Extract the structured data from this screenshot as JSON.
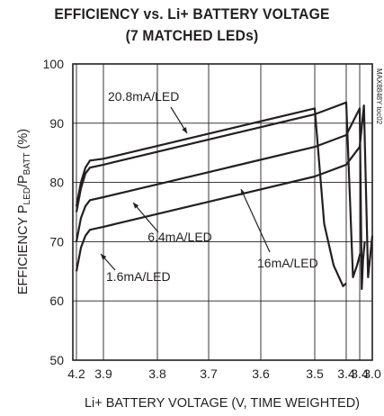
{
  "chart_data": {
    "type": "line",
    "title": "EFFICIENCY vs. Li+ BATTERY VOLTAGE",
    "subtitle": "(7 MATCHED LEDs)",
    "xlabel": "Li+ BATTERY VOLTAGE (V, TIME WEIGHTED)",
    "ylabel": "EFFICIENCY PLED/PBATT (%)",
    "ylabel_parts": {
      "prefix": "EFFICIENCY P",
      "sub1": "LED",
      "mid": "/P",
      "sub2": "BATT",
      "suffix": " (%)"
    },
    "watermark": "MAX8848Y toc02",
    "x_axis": {
      "reversed": true,
      "xlim": [
        4.2,
        3.0
      ],
      "ticks": [
        {
          "value": 4.2,
          "label": "4.2"
        },
        {
          "value": 3.9,
          "label": "3.9"
        },
        {
          "value": 3.8,
          "label": "3.8"
        },
        {
          "value": 3.7,
          "label": "3.7"
        },
        {
          "value": 3.6,
          "label": "3.6"
        },
        {
          "value": 3.5,
          "label": "3.5"
        },
        {
          "value": 3.4,
          "label": "3.4"
        },
        {
          "value": 3.3,
          "label": "3.3"
        },
        {
          "value": 3.0,
          "label": "3.0"
        }
      ],
      "tick_label_display": [
        "4.2",
        "3.9",
        "3.8",
        "3.7",
        "3.6",
        "3.5",
        "3.4",
        "3.4",
        "3.0"
      ]
    },
    "ylim": [
      50,
      100
    ],
    "yticks": [
      50,
      60,
      70,
      80,
      90,
      100
    ],
    "grid": true,
    "series": [
      {
        "name": "20.8mA/LED",
        "x": [
          4.2,
          4.15,
          4.1,
          4.05,
          3.9,
          3.5,
          3.47,
          3.44,
          3.41,
          3.4
        ],
        "y": [
          76,
          80,
          82.5,
          83.7,
          84,
          92.5,
          73,
          66,
          62.5,
          63
        ]
      },
      {
        "name": "16mA/LED",
        "x": [
          4.2,
          4.15,
          4.1,
          4.05,
          3.9,
          3.5,
          3.45,
          3.4,
          3.35,
          3.32,
          3.29
        ],
        "y": [
          75,
          79,
          81.5,
          82.5,
          83,
          91.5,
          92.5,
          93.5,
          64,
          66,
          68
        ]
      },
      {
        "name": "6.4mA/LED",
        "x": [
          4.2,
          4.15,
          4.1,
          4.05,
          3.9,
          3.5,
          3.4,
          3.3,
          3.25,
          3.22,
          3.18
        ],
        "y": [
          70,
          74,
          76,
          77,
          77.5,
          86,
          88,
          92.5,
          62,
          67,
          70
        ]
      },
      {
        "name": "1.6mA/LED",
        "x": [
          4.2,
          4.15,
          4.1,
          4.05,
          3.9,
          3.5,
          3.4,
          3.3,
          3.2,
          3.1,
          3.0
        ],
        "y": [
          65,
          69,
          71,
          72,
          72.5,
          81,
          83,
          86,
          93,
          64,
          71
        ]
      }
    ],
    "annotations": [
      {
        "text": "20.8mA/LED",
        "series": "20.8mA/LED"
      },
      {
        "text": "16mA/LED",
        "series": "16mA/LED"
      },
      {
        "text": "6.4mA/LED",
        "series": "6.4mA/LED"
      },
      {
        "text": "1.6mA/LED",
        "series": "1.6mA/LED"
      }
    ]
  }
}
